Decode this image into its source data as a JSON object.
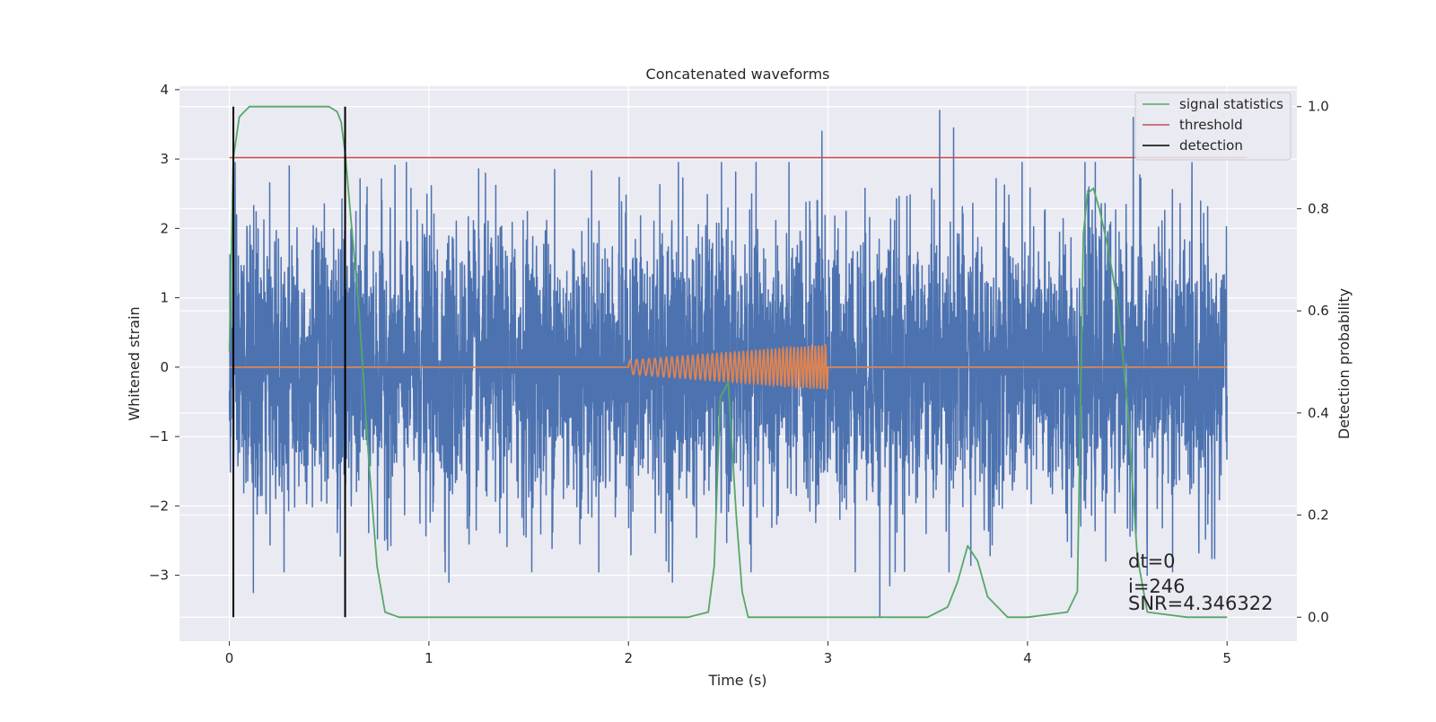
{
  "chart_data": {
    "type": "line",
    "title": "Concatenated waveforms",
    "xlabel": "Time (s)",
    "ylabel": "Whitened strain",
    "y2label": "Detection probability",
    "xlim": [
      -0.25,
      5.35
    ],
    "ylim": [
      -3.95,
      4.05
    ],
    "y2lim": [
      -0.047,
      1.04
    ],
    "xticks": [
      0,
      1,
      2,
      3,
      4,
      5
    ],
    "yticks": [
      -3,
      -2,
      -1,
      0,
      1,
      2,
      3,
      4
    ],
    "y2ticks": [
      0.0,
      0.2,
      0.4,
      0.6,
      0.8,
      1.0
    ],
    "xtick_labels": [
      "0",
      "1",
      "2",
      "3",
      "4",
      "5"
    ],
    "ytick_labels": [
      "−3",
      "−2",
      "−1",
      "0",
      "1",
      "2",
      "3",
      "4"
    ],
    "y2tick_labels": [
      "0.0",
      "0.2",
      "0.4",
      "0.6",
      "0.8",
      "1.0"
    ],
    "grid": true,
    "legend_position": "top-right",
    "legend": [
      {
        "label": "signal statistics",
        "color": "#55a868"
      },
      {
        "label": "threshold",
        "color": "#c44e52"
      },
      {
        "label": "detection",
        "color": "#000000"
      }
    ],
    "series": [
      {
        "key": "strain",
        "axis": "left",
        "color": "#4c72b0",
        "t_start": 0,
        "t_end": 5,
        "typical_amplitude": 1.0,
        "peaks": [
          {
            "x": 0.02,
            "y": 3.0
          },
          {
            "x": 0.3,
            "y": 2.9
          },
          {
            "x": 1.63,
            "y": 2.85
          },
          {
            "x": 2.25,
            "y": 2.95
          },
          {
            "x": 2.97,
            "y": 3.4
          },
          {
            "x": 3.56,
            "y": 3.7
          },
          {
            "x": 3.63,
            "y": 3.45
          },
          {
            "x": 4.53,
            "y": 3.6
          },
          {
            "x": 0.12,
            "y": -3.25
          },
          {
            "x": 1.1,
            "y": -3.1
          },
          {
            "x": 2.22,
            "y": -3.1
          },
          {
            "x": 3.26,
            "y": -3.6
          },
          {
            "x": 3.31,
            "y": -3.15
          },
          {
            "x": 4.6,
            "y": -3.0
          }
        ]
      },
      {
        "key": "injected_signal",
        "axis": "left",
        "color": "#dd8452",
        "t_start": 0,
        "t_end": 5,
        "chirp_start": 2.0,
        "chirp_end": 3.0,
        "amplitude_start": 0.1,
        "amplitude_end": 0.32,
        "freq_start": 30,
        "freq_end": 60
      },
      {
        "key": "signal_statistics",
        "axis": "right",
        "name": "signal statistics",
        "color": "#55a868",
        "x": [
          0.0,
          0.02,
          0.05,
          0.1,
          0.2,
          0.3,
          0.4,
          0.5,
          0.54,
          0.56,
          0.58,
          0.6,
          0.65,
          0.7,
          0.74,
          0.78,
          0.85,
          1.0,
          1.5,
          2.0,
          2.3,
          2.4,
          2.43,
          2.46,
          2.5,
          2.54,
          2.57,
          2.6,
          2.7,
          3.0,
          3.5,
          3.6,
          3.65,
          3.7,
          3.75,
          3.8,
          3.9,
          4.0,
          4.2,
          4.25,
          4.28,
          4.3,
          4.33,
          4.36,
          4.4,
          4.45,
          4.5,
          4.55,
          4.6,
          4.8,
          5.0
        ],
        "y": [
          0.52,
          0.9,
          0.98,
          1.0,
          1.0,
          1.0,
          1.0,
          1.0,
          0.99,
          0.97,
          0.91,
          0.82,
          0.6,
          0.3,
          0.1,
          0.01,
          0.0,
          0.0,
          0.0,
          0.0,
          0.0,
          0.01,
          0.1,
          0.43,
          0.46,
          0.2,
          0.05,
          0.0,
          0.0,
          0.0,
          0.0,
          0.02,
          0.07,
          0.14,
          0.11,
          0.04,
          0.0,
          0.0,
          0.01,
          0.05,
          0.75,
          0.83,
          0.84,
          0.8,
          0.73,
          0.62,
          0.42,
          0.12,
          0.01,
          0.0,
          0.0
        ]
      },
      {
        "key": "threshold",
        "axis": "right",
        "name": "threshold",
        "color": "#c44e52",
        "x": [
          0.0,
          5.1
        ],
        "y": [
          0.9,
          0.9
        ]
      }
    ],
    "detections": [
      {
        "x": 0.02,
        "y_min": 0.0,
        "y_max": 1.0
      },
      {
        "x": 0.58,
        "y_min": 0.0,
        "y_max": 1.0
      }
    ],
    "annotations": [
      {
        "text": "dt=0",
        "x": 4.5,
        "y": -2.7
      },
      {
        "text": "i=246",
        "x": 4.5,
        "y": -3.05
      },
      {
        "text": "SNR=4.346322",
        "x": 4.5,
        "y": -3.35
      }
    ]
  }
}
